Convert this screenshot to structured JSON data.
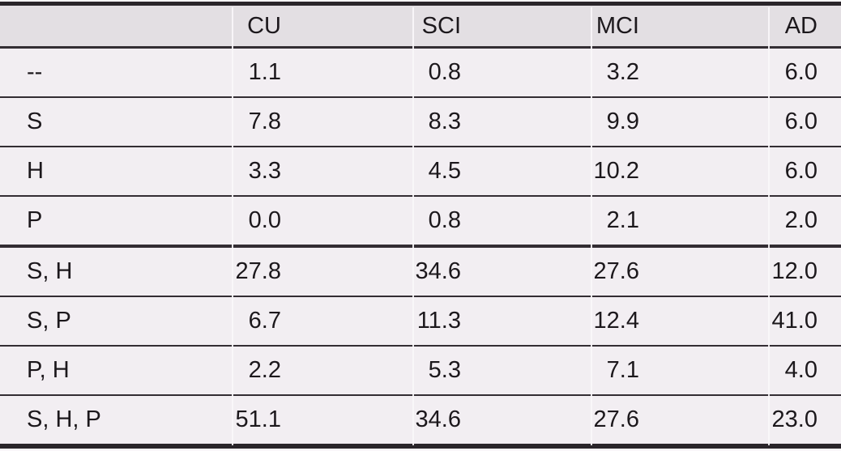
{
  "colors": {
    "page_background": "#faf7fa",
    "body_row_background": "#f2eef2",
    "header_row_background": "#e3dfe3",
    "rule_dark": "#332d33",
    "rule_thick": "#2a252a",
    "text": "#1c181c"
  },
  "table": {
    "columns": [
      "",
      "CU",
      "SCI",
      "MCI",
      "AD"
    ],
    "rows": [
      {
        "label": "--",
        "values": [
          "1.1",
          "0.8",
          "3.2",
          "6.0"
        ]
      },
      {
        "label": "S",
        "values": [
          "7.8",
          "8.3",
          "9.9",
          "6.0"
        ]
      },
      {
        "label": "H",
        "values": [
          "3.3",
          "4.5",
          "10.2",
          "6.0"
        ]
      },
      {
        "label": "P",
        "values": [
          "0.0",
          "0.8",
          "2.1",
          "2.0"
        ]
      },
      {
        "label": "S, H",
        "values": [
          "27.8",
          "34.6",
          "27.6",
          "12.0"
        ]
      },
      {
        "label": "S, P",
        "values": [
          "6.7",
          "11.3",
          "12.4",
          "41.0"
        ]
      },
      {
        "label": "P, H",
        "values": [
          "2.2",
          "5.3",
          "7.1",
          "4.0"
        ]
      },
      {
        "label": "S, H, P",
        "values": [
          "51.1",
          "34.6",
          "27.6",
          "23.0"
        ]
      }
    ]
  },
  "chart_data": {
    "type": "table",
    "columns": [
      "",
      "CU",
      "SCI",
      "MCI",
      "AD"
    ],
    "row_labels": [
      "--",
      "S",
      "H",
      "P",
      "S, H",
      "S, P",
      "P, H",
      "S, H, P"
    ],
    "series": [
      {
        "name": "CU",
        "values": [
          1.1,
          7.8,
          3.3,
          0.0,
          27.8,
          6.7,
          2.2,
          51.1
        ]
      },
      {
        "name": "SCI",
        "values": [
          0.8,
          8.3,
          4.5,
          0.8,
          34.6,
          11.3,
          5.3,
          34.6
        ]
      },
      {
        "name": "MCI",
        "values": [
          3.2,
          9.9,
          10.2,
          2.1,
          27.6,
          12.4,
          7.1,
          27.6
        ]
      },
      {
        "name": "AD",
        "values": [
          6.0,
          6.0,
          6.0,
          2.0,
          12.0,
          41.0,
          4.0,
          23.0
        ]
      }
    ],
    "layout_hints": {
      "numeric_alignment": "right",
      "label_alignment": "left",
      "group_separator_after_row": "P",
      "style": "booktabs-like horizontal rules, no visible dark vertical rules"
    }
  }
}
